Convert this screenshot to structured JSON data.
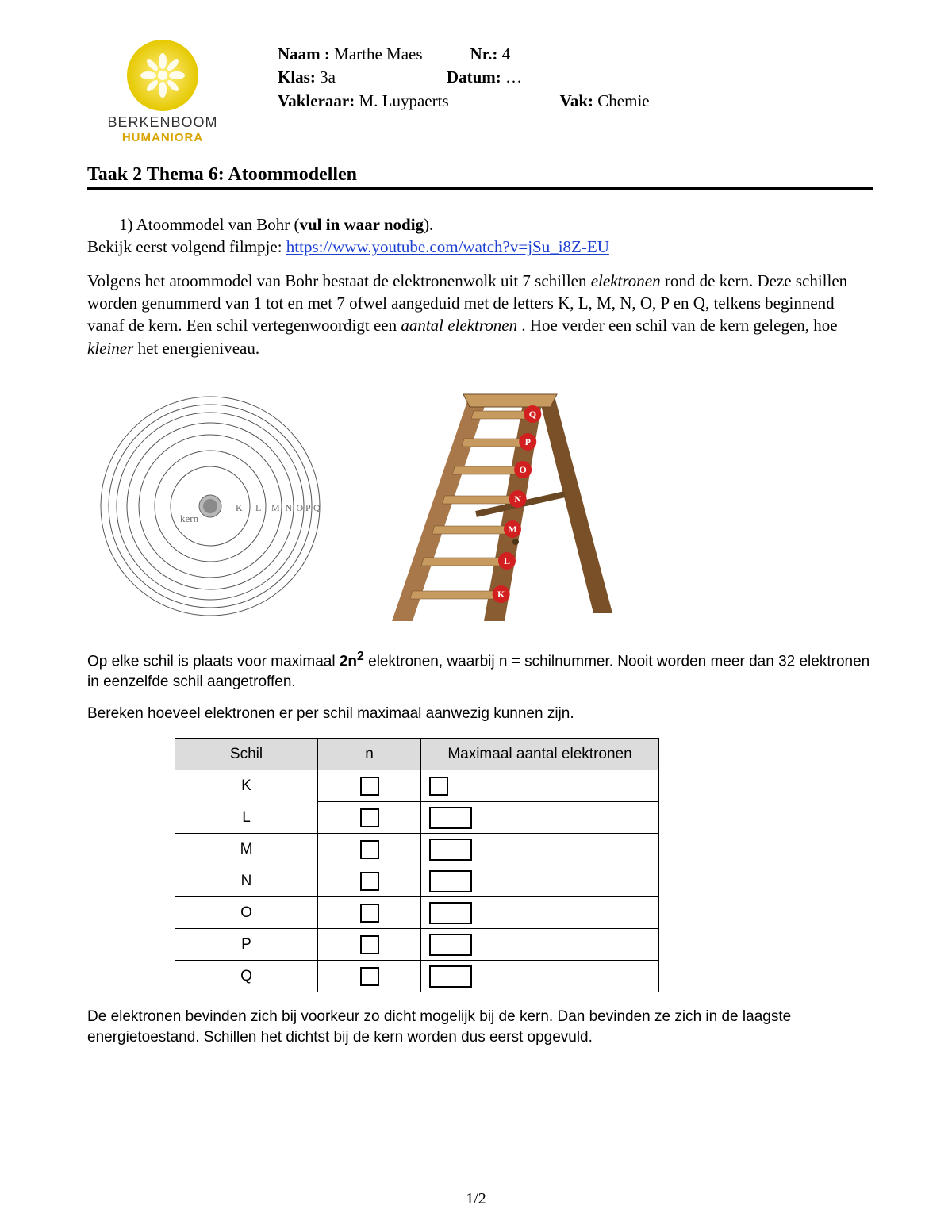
{
  "logo": {
    "line1": "BERKENBOOM",
    "line2": "HUMANIORA",
    "circle_color": "#e5c900",
    "sub_color": "#d8a400"
  },
  "header": {
    "naam_label": "Naam :",
    "naam_value": "Marthe Maes",
    "nr_label": "Nr.:",
    "nr_value": "4",
    "klas_label": "Klas:",
    "klas_value": "3a",
    "datum_label": "Datum:",
    "datum_value": "…",
    "vakleraar_label": "Vakleraar:",
    "vakleraar_value": "M. Luypaerts",
    "vak_label": "Vak:",
    "vak_value": "Chemie"
  },
  "title": "Taak 2 Thema 6: Atoommodellen",
  "question": {
    "num": "1)",
    "text_before": "Atoommodel van Bohr (",
    "bold": "vul in waar nodig",
    "text_after": ")."
  },
  "video": {
    "intro": "Bekijk eerst volgend filmpje: ",
    "url_text": "https://www.youtube.com/watch?v=jSu_i8Z-EU"
  },
  "para1": {
    "p1": "Volgens het atoommodel van Bohr bestaat de elektronenwolk uit 7 schillen ",
    "it1": "elektronen",
    "p2": " rond de kern. Deze schillen worden genummerd van 1 tot en met 7 ofwel aangeduid met de letters K, L, M, N, O, P en Q, telkens beginnend vanaf de kern. Een schil vertegenwoordigt een ",
    "it2": "aantal elektronen",
    "p3": " . Hoe verder een schil van de kern gelegen, hoe ",
    "it3": "kleiner",
    "p4": " het energieniveau."
  },
  "shell_diagram": {
    "center_label": "kern",
    "ring_labels": [
      "K",
      "L",
      "M",
      "N",
      "O",
      "P",
      "Q"
    ],
    "ring_radii": [
      50,
      70,
      90,
      105,
      118,
      128,
      138
    ],
    "center_fill": "#9a9a9a",
    "stroke": "#555555",
    "text_color": "#6a6a6a"
  },
  "ladder": {
    "labels_top_to_bottom": [
      "Q",
      "P",
      "O",
      "N",
      "M",
      "L",
      "K"
    ],
    "wood_dark": "#7a5028",
    "wood_light": "#c79a60",
    "wood_mid": "#a8784a",
    "dot_fill": "#d1201f",
    "dot_text": "#ffffff"
  },
  "caption1": {
    "a": "Op elke schil is plaats voor maximaal ",
    "b": "2n",
    "sup": "2",
    "c": " elektronen, waarbij n = schilnummer. Nooit worden meer dan 32 elektronen in eenzelfde schil aangetroffen."
  },
  "caption2": "Bereken hoeveel elektronen er per schil maximaal aanwezig kunnen zijn.",
  "table": {
    "headers": [
      "Schil",
      "n",
      "Maximaal aantal elektronen"
    ],
    "rows": [
      "K",
      "L",
      "M",
      "N",
      "O",
      "P",
      "Q"
    ]
  },
  "para_last": "De elektronen bevinden zich bij voorkeur zo dicht mogelijk bij de kern. Dan bevinden ze zich in de laagste energietoestand. Schillen het dichtst bij de kern worden dus eerst opgevuld.",
  "footer": "1/2"
}
